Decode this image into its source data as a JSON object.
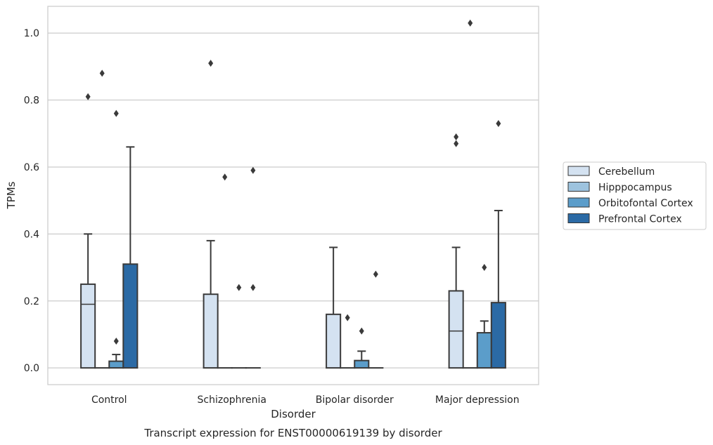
{
  "chart_data": {
    "type": "boxplot",
    "title": "Transcript expression for ENST00000619139 by disorder",
    "xlabel": "Disorder",
    "ylabel": "TPMs",
    "ylim": [
      -0.05,
      1.08
    ],
    "yticks": [
      "0.0",
      "0.2",
      "0.4",
      "0.6",
      "0.8",
      "1.0"
    ],
    "ytick_values": [
      0.0,
      0.2,
      0.4,
      0.6,
      0.8,
      1.0
    ],
    "grid": true,
    "legend_position": "right",
    "categories": [
      "Control",
      "Schizophrenia",
      "Bipolar disorder",
      "Major depression"
    ],
    "series": [
      {
        "name": "Cerebellum",
        "color": "#d4e2f1",
        "boxes": [
          {
            "q1": 0.0,
            "median": 0.19,
            "q3": 0.25,
            "whisker_low": 0.0,
            "whisker_high": 0.4,
            "outliers": [
              0.81
            ]
          },
          {
            "q1": 0.0,
            "median": 0.0,
            "q3": 0.22,
            "whisker_low": 0.0,
            "whisker_high": 0.38,
            "outliers": [
              0.91
            ]
          },
          {
            "q1": 0.0,
            "median": 0.0,
            "q3": 0.16,
            "whisker_low": 0.0,
            "whisker_high": 0.36,
            "outliers": []
          },
          {
            "q1": 0.0,
            "median": 0.11,
            "q3": 0.23,
            "whisker_low": 0.0,
            "whisker_high": 0.36,
            "outliers": [
              0.67,
              0.69
            ]
          }
        ]
      },
      {
        "name": "Hipppocampus",
        "color": "#9dc3de",
        "boxes": [
          {
            "q1": 0.0,
            "median": 0.0,
            "q3": 0.0,
            "whisker_low": 0.0,
            "whisker_high": 0.0,
            "outliers": [
              0.88
            ]
          },
          {
            "q1": 0.0,
            "median": 0.0,
            "q3": 0.0,
            "whisker_low": 0.0,
            "whisker_high": 0.0,
            "outliers": [
              0.57
            ]
          },
          {
            "q1": 0.0,
            "median": 0.0,
            "q3": 0.0,
            "whisker_low": 0.0,
            "whisker_high": 0.0,
            "outliers": [
              0.15
            ]
          },
          {
            "q1": 0.0,
            "median": 0.0,
            "q3": 0.0,
            "whisker_low": 0.0,
            "whisker_high": 0.0,
            "outliers": [
              1.03
            ]
          }
        ]
      },
      {
        "name": "Orbitofontal Cortex",
        "color": "#5b9dca",
        "boxes": [
          {
            "q1": 0.0,
            "median": 0.0,
            "q3": 0.02,
            "whisker_low": 0.0,
            "whisker_high": 0.04,
            "outliers": [
              0.08,
              0.76
            ]
          },
          {
            "q1": 0.0,
            "median": 0.0,
            "q3": 0.0,
            "whisker_low": 0.0,
            "whisker_high": 0.0,
            "outliers": [
              0.24
            ]
          },
          {
            "q1": 0.0,
            "median": 0.0,
            "q3": 0.022,
            "whisker_low": 0.0,
            "whisker_high": 0.05,
            "outliers": [
              0.11
            ]
          },
          {
            "q1": 0.0,
            "median": 0.0,
            "q3": 0.105,
            "whisker_low": 0.0,
            "whisker_high": 0.14,
            "outliers": [
              0.3
            ]
          }
        ]
      },
      {
        "name": "Prefrontal Cortex",
        "color": "#2b6aa5",
        "boxes": [
          {
            "q1": 0.0,
            "median": 0.0,
            "q3": 0.31,
            "whisker_low": 0.0,
            "whisker_high": 0.66,
            "outliers": []
          },
          {
            "q1": 0.0,
            "median": 0.0,
            "q3": 0.0,
            "whisker_low": 0.0,
            "whisker_high": 0.0,
            "outliers": [
              0.24,
              0.59
            ]
          },
          {
            "q1": 0.0,
            "median": 0.0,
            "q3": 0.0,
            "whisker_low": 0.0,
            "whisker_high": 0.0,
            "outliers": [
              0.28
            ]
          },
          {
            "q1": 0.0,
            "median": 0.0,
            "q3": 0.195,
            "whisker_low": 0.0,
            "whisker_high": 0.47,
            "outliers": [
              0.73
            ]
          }
        ]
      }
    ]
  }
}
